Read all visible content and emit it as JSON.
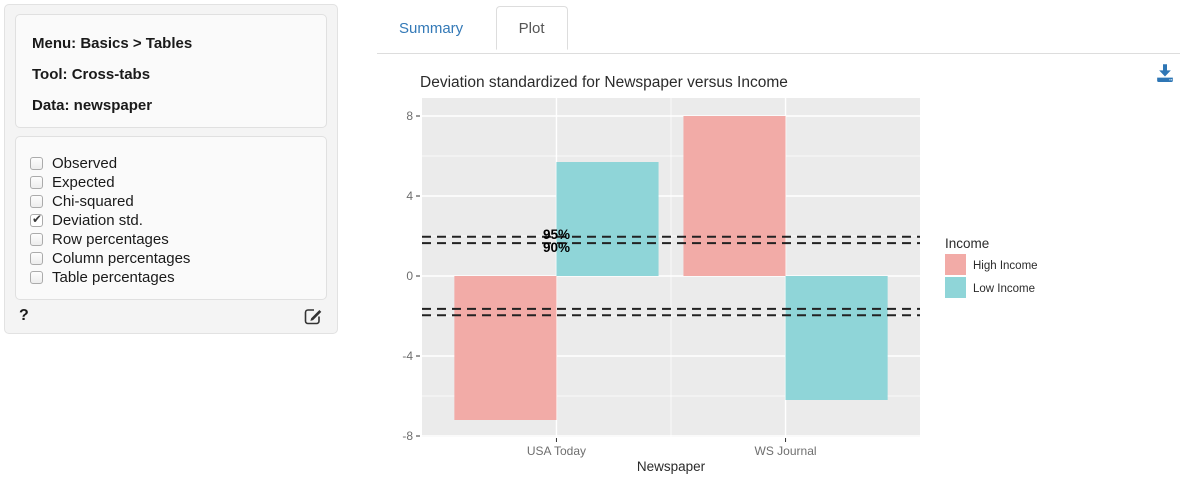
{
  "sidebar": {
    "menu_label": "Menu: Basics > Tables",
    "tool_label": "Tool: Cross-tabs",
    "data_label": "Data: newspaper",
    "options": [
      {
        "label": "Observed",
        "checked": false
      },
      {
        "label": "Expected",
        "checked": false
      },
      {
        "label": "Chi-squared",
        "checked": false
      },
      {
        "label": "Deviation std.",
        "checked": true
      },
      {
        "label": "Row percentages",
        "checked": false
      },
      {
        "label": "Column percentages",
        "checked": false
      },
      {
        "label": "Table percentages",
        "checked": false
      }
    ],
    "help_label": "?"
  },
  "tabs": [
    {
      "label": "Summary",
      "active": false
    },
    {
      "label": "Plot",
      "active": true
    }
  ],
  "icons": {
    "download": "download-icon",
    "edit": "edit-pencil-icon"
  },
  "colors": {
    "accent_blue": "#3379b7",
    "download_blue": "#2e76b5",
    "panel_bg": "#ebebeb",
    "high_income": "#f2aba7",
    "low_income": "#8fd5d8"
  },
  "chart_data": {
    "type": "bar",
    "title": "Deviation standardized for Newspaper versus Income",
    "xlabel": "Newspaper",
    "ylabel": "",
    "categories": [
      "USA Today",
      "WS Journal"
    ],
    "series": [
      {
        "name": "High Income",
        "color": "#f2aba7",
        "values": [
          -7.2,
          8.0
        ]
      },
      {
        "name": "Low Income",
        "color": "#8fd5d8",
        "values": [
          5.7,
          -6.2
        ]
      }
    ],
    "legend_title": "Income",
    "legend_position": "right",
    "ylim": [
      -8.05,
      8.9
    ],
    "yticks": [
      8,
      4,
      0,
      -4,
      -8
    ],
    "minor_yticks": [
      6,
      2,
      -2,
      -6
    ],
    "threshold_lines": [
      {
        "value": 1.96,
        "label": "95%"
      },
      {
        "value": 1.645,
        "label": "90%"
      },
      {
        "value": -1.645,
        "label": ""
      },
      {
        "value": -1.96,
        "label": ""
      }
    ],
    "panel_bg": "#ebebeb",
    "grid": true
  }
}
